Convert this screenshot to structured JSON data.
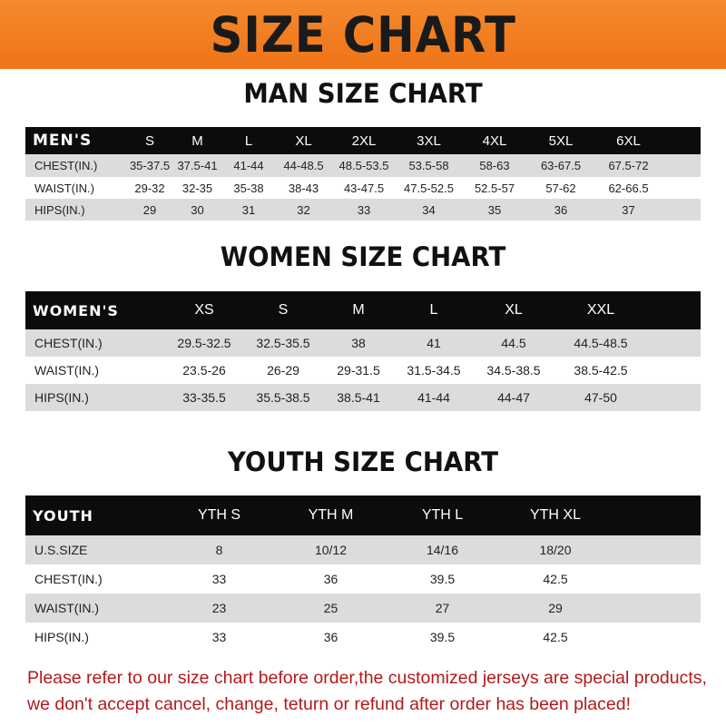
{
  "banner_title": "SIZE CHART",
  "men": {
    "title": "MAN SIZE CHART",
    "header": "MEN'S",
    "sizes": [
      "S",
      "M",
      "L",
      "XL",
      "2XL",
      "3XL",
      "4XL",
      "5XL",
      "6XL"
    ],
    "rows": [
      {
        "label": "CHEST(IN.)",
        "values": [
          "35-37.5",
          "37.5-41",
          "41-44",
          "44-48.5",
          "48.5-53.5",
          "53.5-58",
          "58-63",
          "63-67.5",
          "67.5-72"
        ]
      },
      {
        "label": "WAIST(IN.)",
        "values": [
          "29-32",
          "32-35",
          "35-38",
          "38-43",
          "43-47.5",
          "47.5-52.5",
          "52.5-57",
          "57-62",
          "62-66.5"
        ]
      },
      {
        "label": "HIPS(IN.)",
        "values": [
          "29",
          "30",
          "31",
          "32",
          "33",
          "34",
          "35",
          "36",
          "37"
        ]
      }
    ]
  },
  "women": {
    "title": "WOMEN SIZE CHART",
    "header": "WOMEN'S",
    "sizes": [
      "XS",
      "S",
      "M",
      "L",
      "XL",
      "XXL"
    ],
    "rows": [
      {
        "label": "CHEST(IN.)",
        "values": [
          "29.5-32.5",
          "32.5-35.5",
          "38",
          "41",
          "44.5",
          "44.5-48.5"
        ]
      },
      {
        "label": "WAIST(IN.)",
        "values": [
          "23.5-26",
          "26-29",
          "29-31.5",
          "31.5-34.5",
          "34.5-38.5",
          "38.5-42.5"
        ]
      },
      {
        "label": "HIPS(IN.)",
        "values": [
          "33-35.5",
          "35.5-38.5",
          "38.5-41",
          "41-44",
          "44-47",
          "47-50"
        ]
      }
    ]
  },
  "youth": {
    "title": "YOUTH SIZE CHART",
    "header": "YOUTH",
    "sizes": [
      "YTH S",
      "YTH M",
      "YTH L",
      "YTH XL"
    ],
    "rows": [
      {
        "label": "U.S.SIZE",
        "values": [
          "8",
          "10/12",
          "14/16",
          "18/20"
        ]
      },
      {
        "label": "CHEST(IN.)",
        "values": [
          "33",
          "36",
          "39.5",
          "42.5"
        ]
      },
      {
        "label": "WAIST(IN.)",
        "values": [
          "23",
          "25",
          "27",
          "29"
        ]
      },
      {
        "label": "HIPS(IN.)",
        "values": [
          "33",
          "36",
          "39.5",
          "42.5"
        ]
      }
    ]
  },
  "notice": {
    "line1": "Please refer to our size chart before order,the customized jerseys are special products,",
    "line2": "we don't accept cancel, change, teturn or refund after order has been placed!"
  },
  "colors": {
    "banner": "#f07b1f",
    "header_row": "#0c0c0c",
    "stripe": "#dcdcdc",
    "notice": "#b3191c"
  }
}
